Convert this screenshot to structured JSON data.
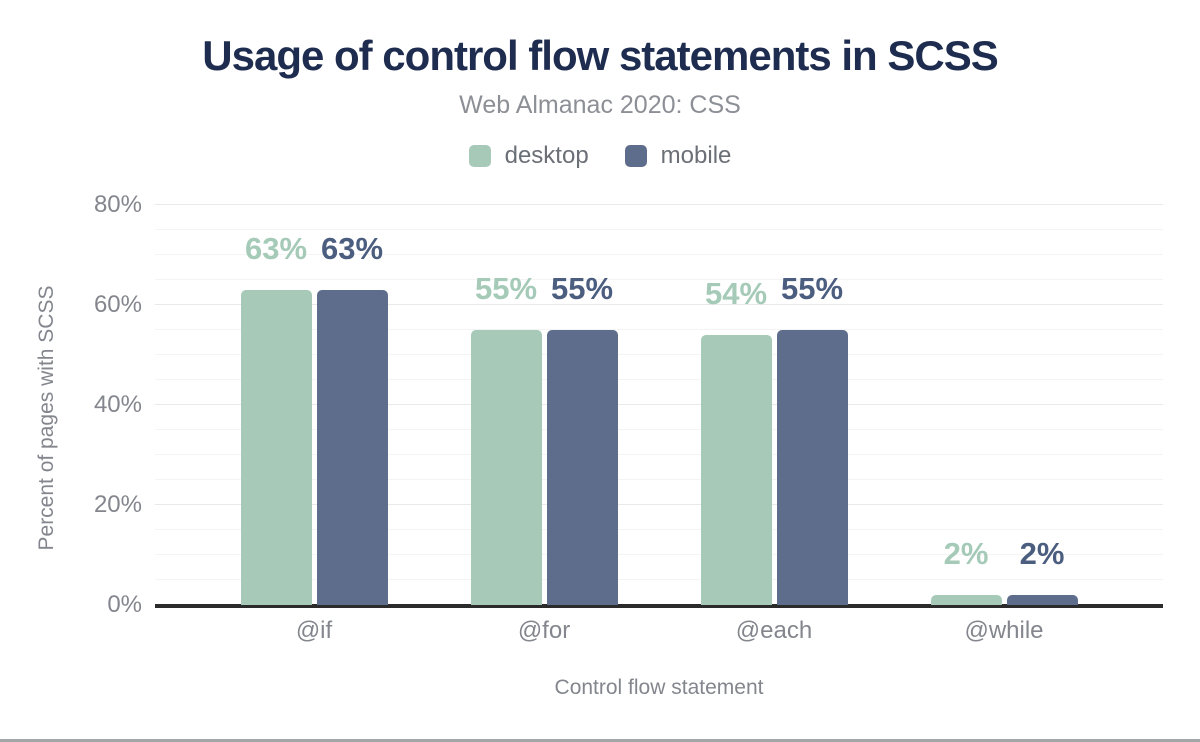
{
  "header": {
    "title": "Usage of control flow statements in SCSS",
    "subtitle": "Web Almanac 2020: CSS"
  },
  "legend": [
    {
      "label": "desktop",
      "color": "#a6cab7"
    },
    {
      "label": "mobile",
      "color": "#5f6d8c"
    }
  ],
  "colors": {
    "title": "#1e2c4f",
    "axis_text": "#83868d",
    "axis_line": "#2b2b2b",
    "desktop_bar": "#a6cab7",
    "mobile_bar": "#5f6d8c",
    "desktop_label": "#a5cab8",
    "mobile_label": "#4c5e80"
  },
  "chart_data": {
    "type": "bar",
    "title": "Usage of control flow statements in SCSS",
    "subtitle": "Web Almanac 2020: CSS",
    "categories": [
      "@if",
      "@for",
      "@each",
      "@while"
    ],
    "series": [
      {
        "name": "desktop",
        "color": "#a6cab7",
        "label_color": "#a5cab8",
        "values": [
          63,
          55,
          54,
          2
        ],
        "labels": [
          "63%",
          "55%",
          "54%",
          "2%"
        ]
      },
      {
        "name": "mobile",
        "color": "#5f6d8c",
        "label_color": "#4c5e80",
        "values": [
          63,
          55,
          55,
          2
        ],
        "labels": [
          "63%",
          "55%",
          "55%",
          "2%"
        ]
      }
    ],
    "xlabel": "Control flow statement",
    "ylabel": "Percent of pages with SCSS",
    "ylim": [
      0,
      80
    ],
    "yticks": [
      {
        "value": 0,
        "label": "0%"
      },
      {
        "value": 20,
        "label": "20%"
      },
      {
        "value": 40,
        "label": "40%"
      },
      {
        "value": 60,
        "label": "60%"
      },
      {
        "value": 80,
        "label": "80%"
      }
    ],
    "grid": {
      "on": true,
      "minor_step": 5,
      "major_step": 20,
      "orientation": "horizontal"
    },
    "legend_position": "top-center"
  }
}
